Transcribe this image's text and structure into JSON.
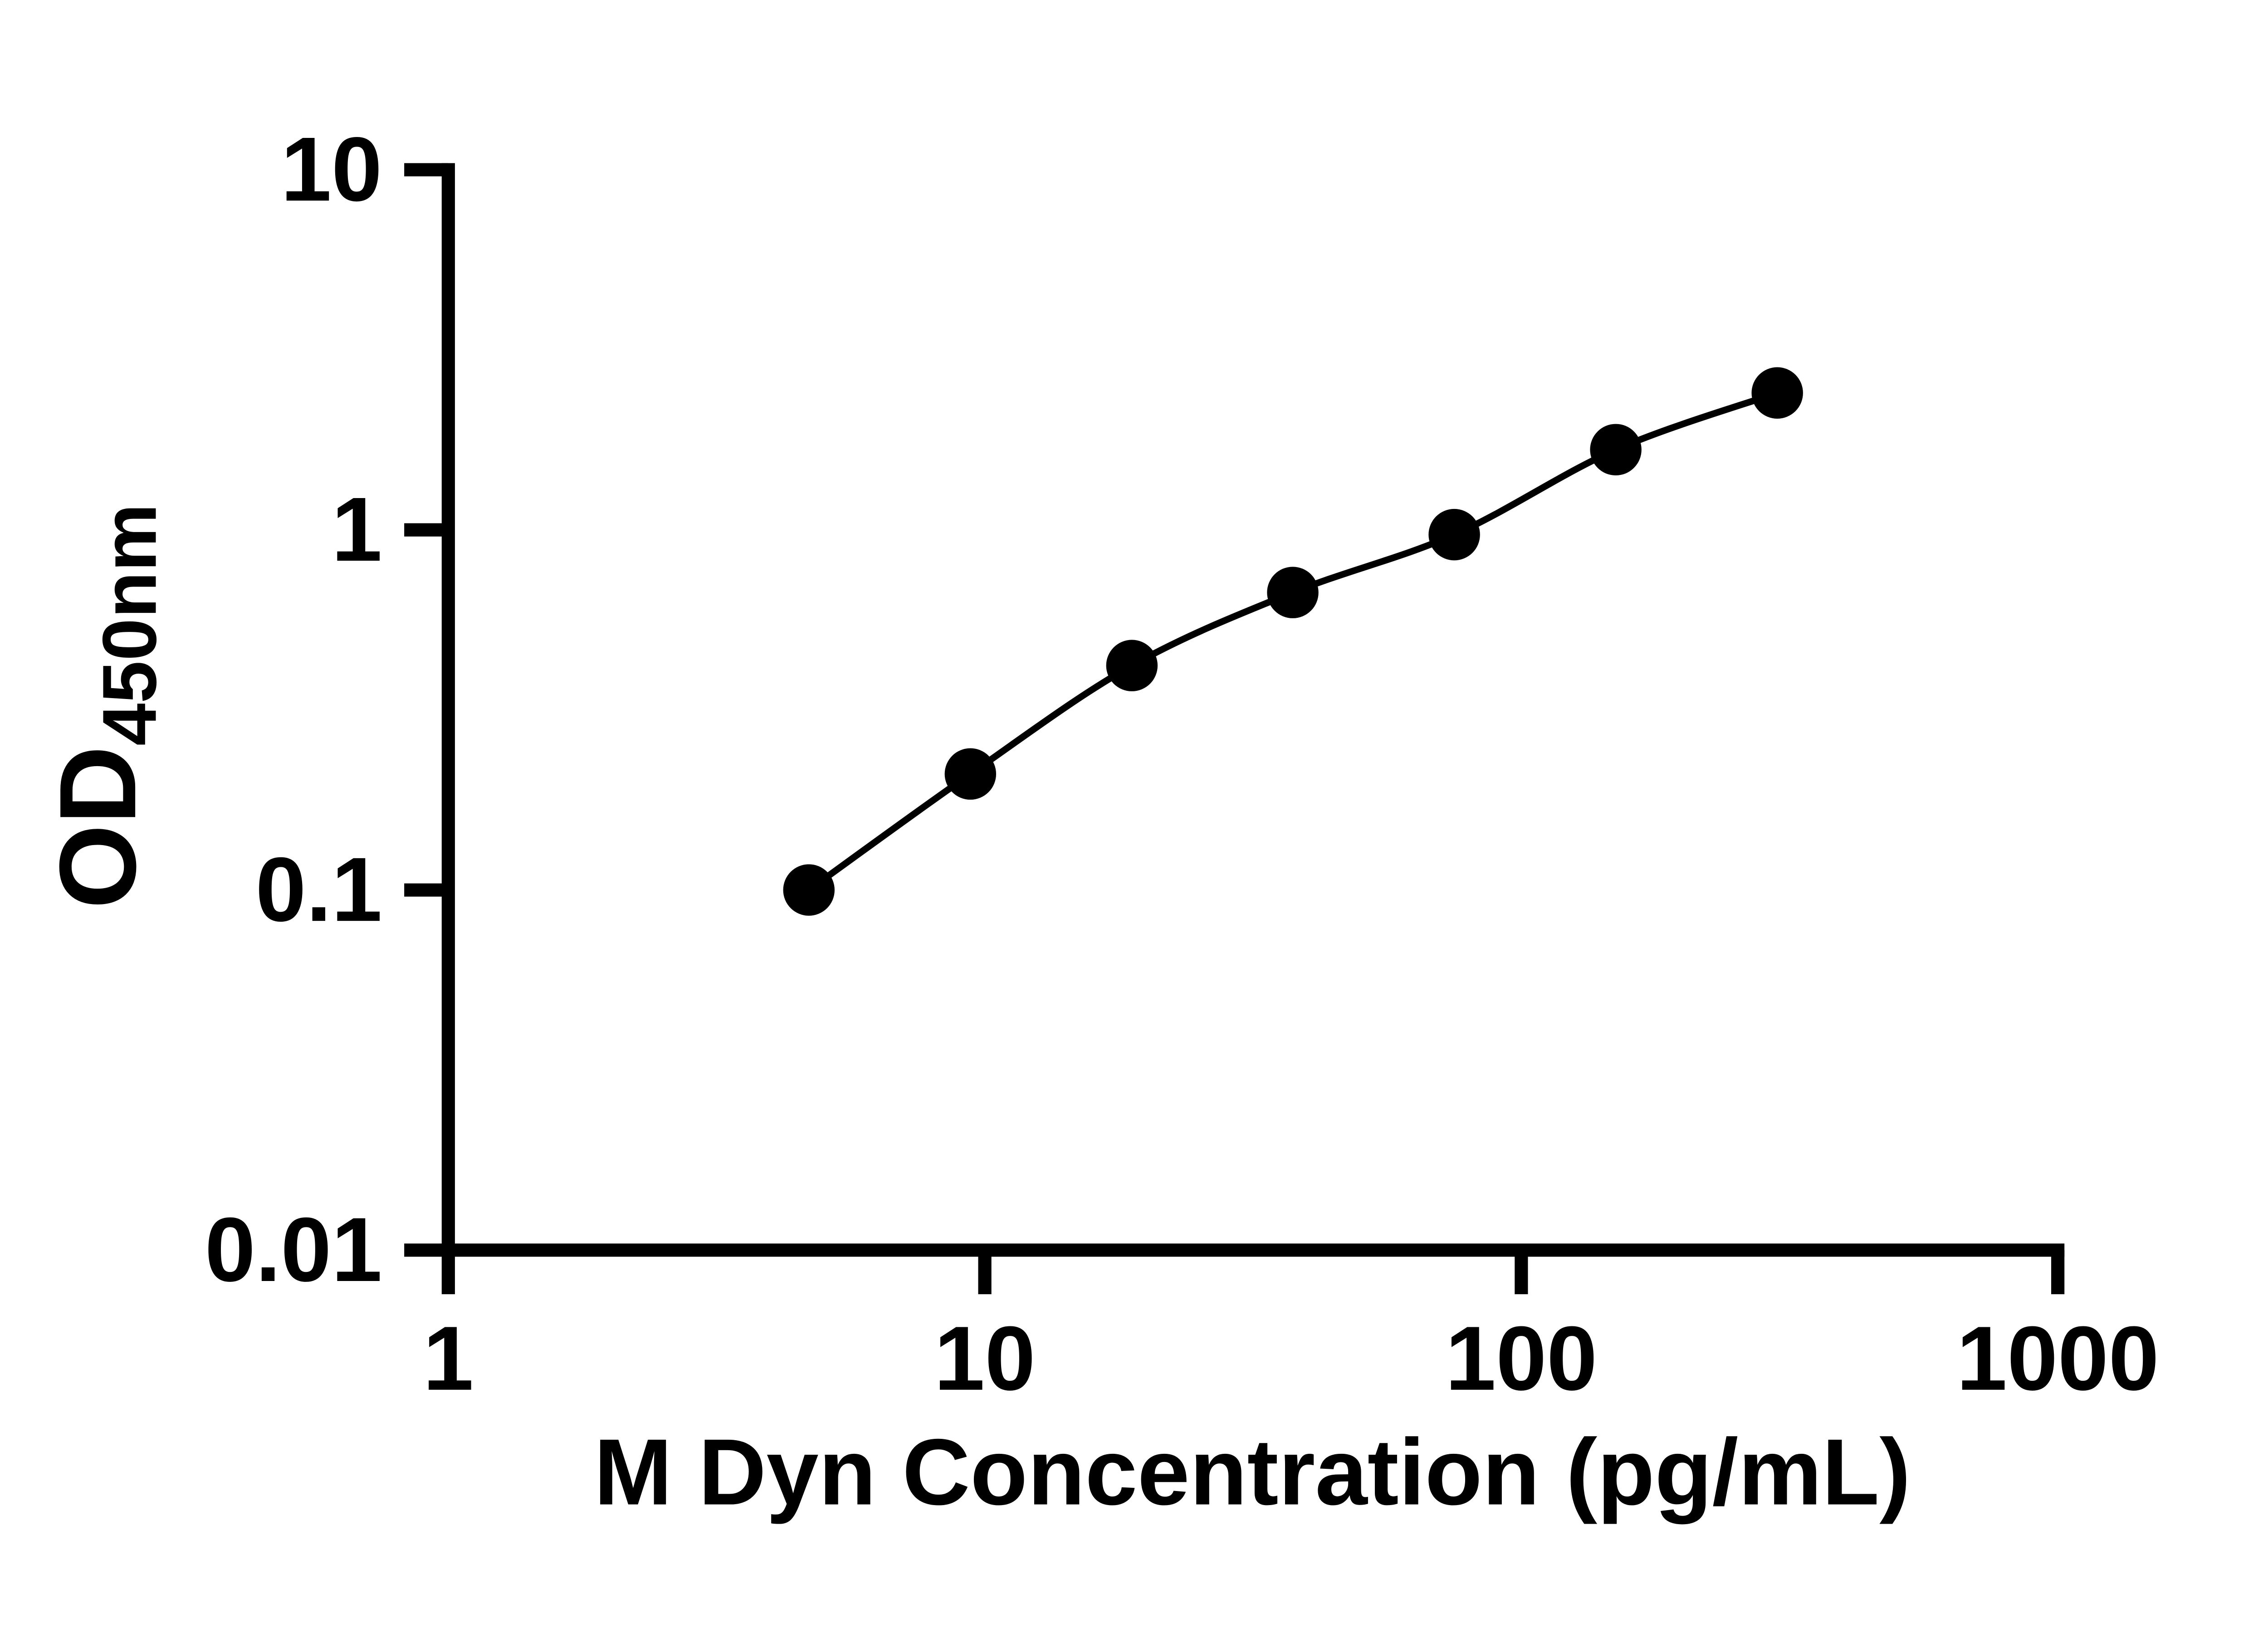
{
  "chart_data": {
    "type": "scatter",
    "title": "",
    "xlabel": "M Dyn Concentration (pg/mL)",
    "ylabel": "OD450nm",
    "ylabel_main": "OD",
    "ylabel_sub": "450nm",
    "x_scale": "log",
    "y_scale": "log",
    "xlim": [
      1,
      1000
    ],
    "ylim": [
      0.01,
      10
    ],
    "x_ticks": [
      "1",
      "10",
      "100",
      "1000"
    ],
    "y_ticks": [
      "0.01",
      "0.1",
      "1",
      "10"
    ],
    "grid": false,
    "legend": false,
    "series": [
      {
        "x": [
          4.7,
          9.4,
          18.8,
          37.5,
          75,
          150,
          300
        ],
        "y": [
          0.1,
          0.21,
          0.42,
          0.67,
          0.97,
          1.67,
          2.4
        ],
        "marker": "circle",
        "line": true,
        "color": "#000000"
      }
    ]
  },
  "colors": {
    "foreground": "#000000",
    "background": "#ffffff"
  }
}
